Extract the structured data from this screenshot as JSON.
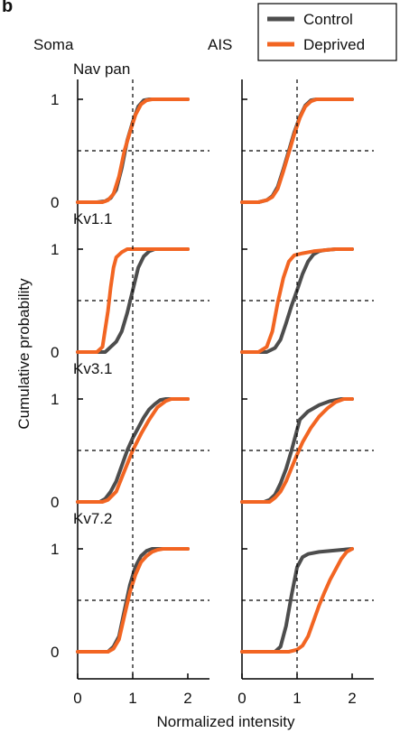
{
  "figure": {
    "panel_letter": "b",
    "column_labels": [
      "Soma",
      "AIS"
    ],
    "ylabel": "Cumulative probability",
    "xlabel": "Normalized intensity",
    "x_tick_labels": [
      "0",
      "1",
      "2"
    ],
    "y_tick_labels": [
      "0",
      "1"
    ],
    "legend": [
      "Control",
      "Deprived"
    ],
    "colors": {
      "Control": "#4d4d4d",
      "Deprived": "#f26522"
    }
  },
  "chart_data": [
    {
      "type": "line",
      "title": "Nav pan",
      "column": "Soma",
      "xlim": [
        0,
        2.2
      ],
      "ylim": [
        0,
        1
      ],
      "series": [
        {
          "name": "Control",
          "x": [
            0,
            0.35,
            0.5,
            0.6,
            0.7,
            0.8,
            0.9,
            1.0,
            1.1,
            1.2,
            1.3,
            1.4,
            1.6,
            2.0
          ],
          "y": [
            0,
            0,
            0.01,
            0.04,
            0.12,
            0.33,
            0.6,
            0.78,
            0.93,
            0.99,
            1.0,
            1.0,
            1.0,
            1.0
          ]
        },
        {
          "name": "Deprived",
          "x": [
            0,
            0.45,
            0.55,
            0.65,
            0.75,
            0.85,
            0.95,
            1.05,
            1.15,
            1.25,
            1.35,
            1.5,
            2.0
          ],
          "y": [
            0,
            0,
            0.02,
            0.08,
            0.25,
            0.5,
            0.68,
            0.85,
            0.95,
            0.99,
            1.0,
            1.0,
            1.0
          ]
        }
      ]
    },
    {
      "type": "line",
      "title": "",
      "column": "AIS",
      "xlim": [
        0,
        2.2
      ],
      "ylim": [
        0,
        1
      ],
      "series": [
        {
          "name": "Control",
          "x": [
            0,
            0.3,
            0.45,
            0.55,
            0.65,
            0.75,
            0.85,
            0.95,
            1.05,
            1.15,
            1.25,
            1.35,
            1.5,
            2.0
          ],
          "y": [
            0,
            0,
            0.02,
            0.06,
            0.15,
            0.32,
            0.5,
            0.68,
            0.83,
            0.94,
            0.99,
            1.0,
            1.0,
            1.0
          ]
        },
        {
          "name": "Deprived",
          "x": [
            0,
            0.3,
            0.45,
            0.55,
            0.65,
            0.75,
            0.85,
            0.95,
            1.05,
            1.15,
            1.25,
            1.35,
            1.5,
            2.0
          ],
          "y": [
            0,
            0,
            0.02,
            0.05,
            0.13,
            0.3,
            0.48,
            0.66,
            0.82,
            0.93,
            0.98,
            1.0,
            1.0,
            1.0
          ]
        }
      ]
    },
    {
      "type": "line",
      "title": "Kv1.1",
      "column": "Soma",
      "xlim": [
        0,
        2.2
      ],
      "ylim": [
        0,
        1
      ],
      "series": [
        {
          "name": "Control",
          "x": [
            0,
            0.5,
            0.6,
            0.7,
            0.8,
            0.9,
            1.0,
            1.1,
            1.2,
            1.3,
            1.4,
            1.6,
            2.0
          ],
          "y": [
            0,
            0,
            0.05,
            0.1,
            0.2,
            0.38,
            0.6,
            0.82,
            0.93,
            0.98,
            1.0,
            1.0,
            1.0
          ]
        },
        {
          "name": "Deprived",
          "x": [
            0,
            0.35,
            0.45,
            0.55,
            0.6,
            0.65,
            0.7,
            0.8,
            0.9,
            1.0,
            2.0
          ],
          "y": [
            0,
            0,
            0.05,
            0.4,
            0.63,
            0.82,
            0.92,
            0.97,
            1.0,
            1.0,
            1.0
          ]
        }
      ]
    },
    {
      "type": "line",
      "title": "",
      "column": "AIS",
      "xlim": [
        0,
        2.2
      ],
      "ylim": [
        0,
        1
      ],
      "series": [
        {
          "name": "Control",
          "x": [
            0,
            0.45,
            0.6,
            0.7,
            0.8,
            0.9,
            1.0,
            1.1,
            1.2,
            1.3,
            1.4,
            1.5,
            1.7,
            2.0
          ],
          "y": [
            0,
            0,
            0.04,
            0.12,
            0.28,
            0.45,
            0.6,
            0.76,
            0.88,
            0.95,
            0.98,
            0.99,
            1.0,
            1.0
          ]
        },
        {
          "name": "Deprived",
          "x": [
            0,
            0.3,
            0.45,
            0.55,
            0.65,
            0.75,
            0.85,
            0.95,
            1.1,
            1.3,
            1.5,
            1.7,
            2.0
          ],
          "y": [
            0,
            0,
            0.05,
            0.2,
            0.48,
            0.72,
            0.88,
            0.94,
            0.96,
            0.98,
            0.99,
            1.0,
            1.0
          ]
        }
      ]
    },
    {
      "type": "line",
      "title": "Kv3.1",
      "column": "Soma",
      "xlim": [
        0,
        2.2
      ],
      "ylim": [
        0,
        1
      ],
      "series": [
        {
          "name": "Control",
          "x": [
            0,
            0.4,
            0.5,
            0.6,
            0.7,
            0.8,
            0.9,
            1.0,
            1.1,
            1.2,
            1.3,
            1.4,
            1.5,
            1.6,
            2.0
          ],
          "y": [
            0,
            0,
            0.03,
            0.1,
            0.2,
            0.35,
            0.5,
            0.62,
            0.72,
            0.82,
            0.9,
            0.95,
            0.99,
            1.0,
            1.0
          ]
        },
        {
          "name": "Deprived",
          "x": [
            0,
            0.45,
            0.55,
            0.7,
            0.85,
            1.0,
            1.15,
            1.3,
            1.45,
            1.6,
            1.7,
            2.0
          ],
          "y": [
            0,
            0,
            0.02,
            0.1,
            0.3,
            0.5,
            0.66,
            0.8,
            0.92,
            0.98,
            1.0,
            1.0
          ]
        }
      ]
    },
    {
      "type": "line",
      "title": "",
      "column": "AIS",
      "xlim": [
        0,
        2.2
      ],
      "ylim": [
        0,
        1
      ],
      "series": [
        {
          "name": "Control",
          "x": [
            0,
            0.4,
            0.5,
            0.6,
            0.7,
            0.8,
            0.9,
            1.0,
            1.05,
            1.2,
            1.4,
            1.6,
            1.8,
            2.0
          ],
          "y": [
            0,
            0,
            0.02,
            0.07,
            0.18,
            0.32,
            0.5,
            0.7,
            0.8,
            0.88,
            0.94,
            0.98,
            1.0,
            1.0
          ]
        },
        {
          "name": "Deprived",
          "x": [
            0,
            0.5,
            0.6,
            0.7,
            0.8,
            0.9,
            1.0,
            1.1,
            1.25,
            1.4,
            1.55,
            1.7,
            1.85,
            2.0
          ],
          "y": [
            0,
            0,
            0.04,
            0.1,
            0.2,
            0.33,
            0.46,
            0.58,
            0.72,
            0.83,
            0.91,
            0.97,
            1.0,
            1.0
          ]
        }
      ]
    },
    {
      "type": "line",
      "title": "Kv7.2",
      "column": "Soma",
      "xlim": [
        0,
        2.2
      ],
      "ylim": [
        0,
        1
      ],
      "series": [
        {
          "name": "Control",
          "x": [
            0,
            0.55,
            0.65,
            0.75,
            0.85,
            0.95,
            1.05,
            1.15,
            1.25,
            1.35,
            1.45,
            1.6,
            2.0
          ],
          "y": [
            0,
            0,
            0.05,
            0.15,
            0.4,
            0.65,
            0.83,
            0.93,
            0.98,
            1.0,
            1.0,
            1.0,
            1.0
          ]
        },
        {
          "name": "Deprived",
          "x": [
            0,
            0.55,
            0.65,
            0.75,
            0.85,
            0.95,
            1.05,
            1.15,
            1.25,
            1.35,
            1.45,
            1.55,
            1.65,
            2.0
          ],
          "y": [
            0,
            0,
            0.03,
            0.12,
            0.35,
            0.58,
            0.75,
            0.87,
            0.93,
            0.97,
            0.99,
            1.0,
            1.0,
            1.0
          ]
        }
      ]
    },
    {
      "type": "line",
      "title": "",
      "column": "AIS",
      "xlim": [
        0,
        2.2
      ],
      "ylim": [
        0,
        1
      ],
      "series": [
        {
          "name": "Control",
          "x": [
            0,
            0.6,
            0.7,
            0.8,
            0.9,
            1.0,
            1.1,
            1.2,
            1.4,
            1.6,
            1.8,
            2.0
          ],
          "y": [
            0,
            0,
            0.05,
            0.25,
            0.55,
            0.82,
            0.92,
            0.95,
            0.97,
            0.98,
            0.99,
            1.0
          ]
        },
        {
          "name": "Deprived",
          "x": [
            0,
            0.85,
            1.0,
            1.1,
            1.2,
            1.3,
            1.4,
            1.5,
            1.6,
            1.7,
            1.8,
            1.9,
            2.0
          ],
          "y": [
            0,
            0,
            0.02,
            0.06,
            0.15,
            0.3,
            0.45,
            0.58,
            0.7,
            0.8,
            0.9,
            0.97,
            1.0
          ]
        }
      ]
    }
  ]
}
